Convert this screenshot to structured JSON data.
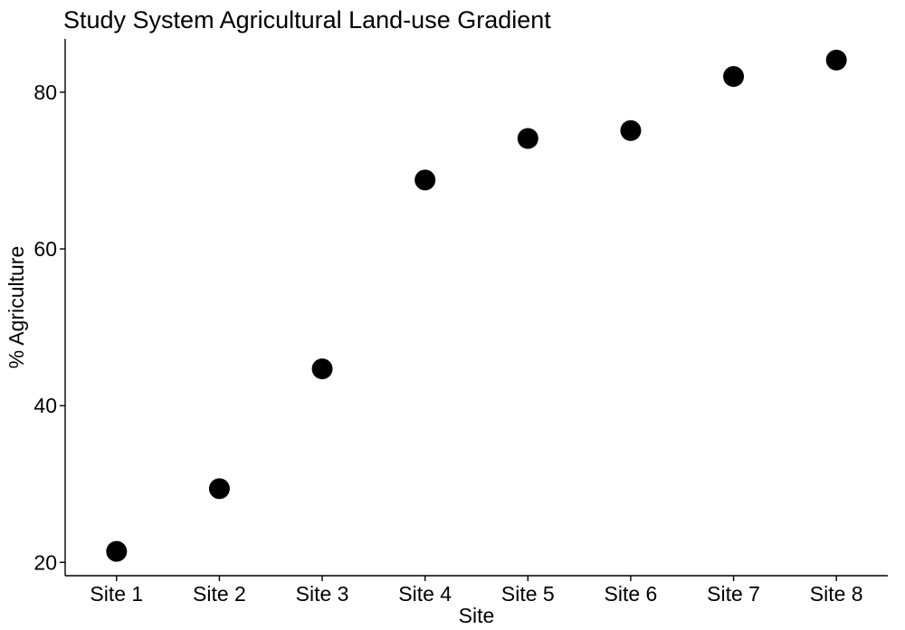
{
  "chart_data": {
    "type": "scatter",
    "title": "Study System Agricultural Land-use Gradient",
    "xlabel": "Site",
    "ylabel": "% Agriculture",
    "categories": [
      "Site 1",
      "Site 2",
      "Site 3",
      "Site 4",
      "Site 5",
      "Site 6",
      "Site 7",
      "Site 8"
    ],
    "values": [
      21.4,
      29.4,
      44.7,
      68.8,
      74.1,
      75.1,
      82.0,
      84.1
    ],
    "ylim": [
      18.3,
      86.8
    ],
    "yticks": [
      20,
      40,
      60,
      80
    ],
    "ytick_labels": [
      "20",
      "40",
      "60",
      "80"
    ],
    "grid": false,
    "legend": "none",
    "point_color": "#000000"
  }
}
